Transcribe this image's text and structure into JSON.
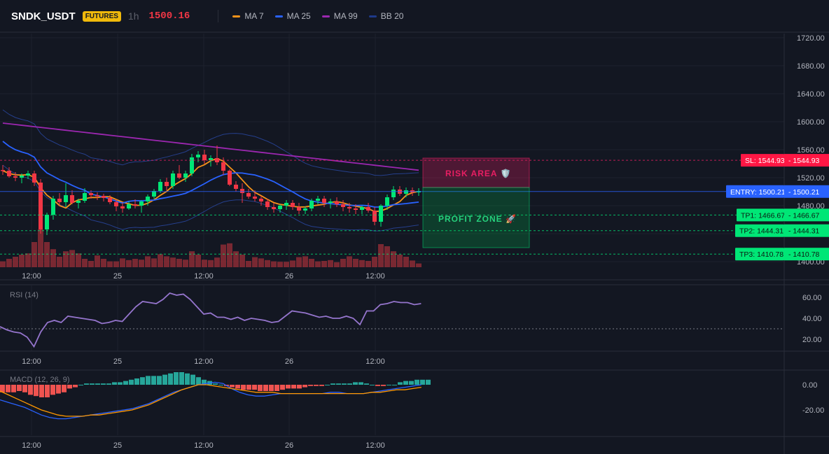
{
  "header": {
    "symbol": "SNDK_USDT",
    "badge": "FUTURES",
    "timeframe": "1h",
    "price": "1500.16",
    "legend": [
      {
        "label": "MA 7",
        "color": "#f7931a"
      },
      {
        "label": "MA 25",
        "color": "#2962ff"
      },
      {
        "label": "MA 99",
        "color": "#9c27b0"
      },
      {
        "label": "BB 20",
        "color": "#1e3a8a"
      }
    ]
  },
  "colors": {
    "background": "#131722",
    "up": "#26a69a",
    "up_bright": "#00e676",
    "down": "#f23645",
    "grid": "#1e222d",
    "sl": "#e91e63",
    "entry": "#2962ff",
    "tp": "#00e676"
  },
  "time_axis": [
    "12:00",
    "25",
    "12:00",
    "26",
    "12:00"
  ],
  "price_axis": {
    "labels": [
      "1720.00",
      "1680.00",
      "1640.00",
      "1600.00",
      "1560.00",
      "1520.00",
      "1480.00",
      "1440.00",
      "1400.00"
    ],
    "range": [
      1392,
      1726
    ]
  },
  "levels": {
    "sl": {
      "tag": "SL: 1544.93",
      "axis": "1544.93",
      "value": 1544.93
    },
    "entry": {
      "tag": "ENTRY: 1500.21",
      "axis": "1500.21",
      "value": 1500.21
    },
    "tp1": {
      "tag": "TP1: 1466.67",
      "axis": "1466.67",
      "value": 1466.67
    },
    "tp2": {
      "tag": "TP2: 1444.31",
      "axis": "1444.31",
      "value": 1444.31
    },
    "tp3": {
      "tag": "TP3: 1410.78",
      "axis": "1410.78",
      "value": 1410.78
    }
  },
  "zones": {
    "risk": "RISK AREA 🛡️",
    "profit": "PROFIT ZONE 🚀"
  },
  "rsi": {
    "title": "RSI (14)",
    "axis": [
      "60.00",
      "40.00",
      "20.00"
    ],
    "range": [
      10,
      70
    ],
    "dashed_level": 30,
    "values": [
      32,
      29,
      27,
      26,
      22,
      13,
      27,
      36,
      38,
      36,
      42,
      41,
      40,
      39,
      38,
      35,
      36,
      38,
      37,
      44,
      51,
      56,
      55,
      54,
      58,
      64,
      62,
      63,
      58,
      51,
      44,
      45,
      41,
      41,
      39,
      41,
      38,
      40,
      39,
      38,
      36,
      37,
      42,
      47,
      46,
      45,
      43,
      41,
      42,
      40,
      40,
      42,
      40,
      34,
      47,
      47,
      53,
      54,
      56,
      55,
      55,
      53,
      54
    ]
  },
  "macd": {
    "title": "MACD (12, 26, 9)",
    "axis": [
      "0.00",
      "-20.00"
    ],
    "range": [
      -40,
      10
    ],
    "hist": [
      -6,
      -6,
      -6,
      -5,
      -6,
      -8,
      -9,
      -10,
      -10,
      -8,
      -7,
      -6,
      -3,
      -2,
      0,
      1,
      1,
      1,
      1,
      1,
      2,
      2,
      3,
      4,
      5,
      6,
      7,
      7,
      7,
      8,
      9,
      10,
      10,
      9,
      8,
      6,
      4,
      3,
      1,
      0,
      -1,
      -2,
      -3,
      -4,
      -4,
      -4,
      -5,
      -5,
      -5,
      -5,
      -4,
      -3,
      -3,
      -3,
      -2,
      -1,
      -1,
      -1,
      0,
      1,
      1,
      1,
      1,
      2,
      2,
      1,
      0,
      -1,
      -1,
      0,
      0,
      2,
      3,
      3,
      4,
      4,
      4
    ],
    "macd": [
      -12,
      -14,
      -16,
      -18,
      -21,
      -24,
      -26,
      -27,
      -27,
      -26,
      -25,
      -24,
      -23,
      -22,
      -21,
      -20,
      -19,
      -17,
      -15,
      -12,
      -9,
      -6,
      -4,
      -2,
      0,
      1,
      2,
      1,
      -3,
      -6,
      -8,
      -9,
      -9,
      -8,
      -7,
      -7,
      -7,
      -7,
      -7,
      -7,
      -6,
      -6,
      -7,
      -7,
      -7,
      -6,
      -5,
      -4,
      -3,
      -2,
      -1,
      0
    ],
    "signal": [
      -5,
      -8,
      -11,
      -14,
      -17,
      -20,
      -22,
      -24,
      -25,
      -25,
      -25,
      -24,
      -24,
      -23,
      -22,
      -21,
      -20,
      -18,
      -16,
      -13,
      -10,
      -7,
      -4,
      -2,
      0,
      0,
      -1,
      -2,
      -3,
      -4,
      -5,
      -6,
      -6,
      -6,
      -7,
      -7,
      -7,
      -7,
      -7,
      -7,
      -7,
      -7,
      -7,
      -7,
      -7,
      -6,
      -6,
      -5,
      -4,
      -4,
      -3,
      -2
    ]
  },
  "chart_data": {
    "type": "candlestick",
    "x_ticks": [
      "12:00",
      "25",
      "12:00",
      "26",
      "12:00"
    ],
    "y_range": [
      1392,
      1726
    ],
    "candles": [
      [
        1531,
        1538,
        1524,
        1530
      ],
      [
        1530,
        1535,
        1520,
        1522
      ],
      [
        1522,
        1528,
        1515,
        1520
      ],
      [
        1520,
        1526,
        1512,
        1523
      ],
      [
        1523,
        1530,
        1518,
        1526
      ],
      [
        1526,
        1530,
        1508,
        1513
      ],
      [
        1513,
        1518,
        1440,
        1446
      ],
      [
        1446,
        1470,
        1438,
        1467
      ],
      [
        1467,
        1494,
        1460,
        1490
      ],
      [
        1490,
        1498,
        1480,
        1485
      ],
      [
        1485,
        1512,
        1478,
        1495
      ],
      [
        1495,
        1502,
        1482,
        1484
      ],
      [
        1484,
        1490,
        1476,
        1487
      ],
      [
        1487,
        1505,
        1484,
        1498
      ],
      [
        1498,
        1502,
        1490,
        1495
      ],
      [
        1495,
        1499,
        1488,
        1494
      ],
      [
        1494,
        1497,
        1486,
        1491
      ],
      [
        1491,
        1495,
        1482,
        1485
      ],
      [
        1485,
        1489,
        1472,
        1479
      ],
      [
        1479,
        1484,
        1470,
        1476
      ],
      [
        1476,
        1486,
        1474,
        1482
      ],
      [
        1482,
        1489,
        1476,
        1480
      ],
      [
        1480,
        1488,
        1470,
        1486
      ],
      [
        1486,
        1496,
        1480,
        1493
      ],
      [
        1493,
        1504,
        1490,
        1501
      ],
      [
        1501,
        1518,
        1498,
        1514
      ],
      [
        1514,
        1520,
        1502,
        1508
      ],
      [
        1508,
        1530,
        1504,
        1526
      ],
      [
        1526,
        1538,
        1518,
        1520
      ],
      [
        1520,
        1530,
        1514,
        1526
      ],
      [
        1526,
        1554,
        1522,
        1549
      ],
      [
        1549,
        1558,
        1542,
        1553
      ],
      [
        1553,
        1560,
        1540,
        1545
      ],
      [
        1545,
        1552,
        1536,
        1548
      ],
      [
        1548,
        1566,
        1538,
        1542
      ],
      [
        1542,
        1549,
        1524,
        1530
      ],
      [
        1530,
        1532,
        1508,
        1510
      ],
      [
        1510,
        1515,
        1500,
        1504
      ],
      [
        1504,
        1512,
        1484,
        1498
      ],
      [
        1498,
        1504,
        1490,
        1493
      ],
      [
        1493,
        1502,
        1486,
        1490
      ],
      [
        1490,
        1494,
        1480,
        1486
      ],
      [
        1486,
        1490,
        1474,
        1478
      ],
      [
        1478,
        1484,
        1470,
        1475
      ],
      [
        1475,
        1482,
        1470,
        1480
      ],
      [
        1480,
        1488,
        1474,
        1484
      ],
      [
        1484,
        1488,
        1474,
        1478
      ],
      [
        1478,
        1484,
        1468,
        1473
      ],
      [
        1473,
        1479,
        1468,
        1476
      ],
      [
        1476,
        1490,
        1472,
        1487
      ],
      [
        1487,
        1494,
        1482,
        1490
      ],
      [
        1490,
        1494,
        1478,
        1484
      ],
      [
        1484,
        1490,
        1476,
        1486
      ],
      [
        1486,
        1492,
        1478,
        1482
      ],
      [
        1482,
        1488,
        1472,
        1478
      ],
      [
        1478,
        1484,
        1470,
        1476
      ],
      [
        1476,
        1482,
        1468,
        1474
      ],
      [
        1474,
        1480,
        1468,
        1478
      ],
      [
        1478,
        1484,
        1470,
        1473
      ],
      [
        1473,
        1478,
        1452,
        1457
      ],
      [
        1457,
        1482,
        1450,
        1480
      ],
      [
        1480,
        1496,
        1474,
        1492
      ],
      [
        1492,
        1508,
        1488,
        1503
      ],
      [
        1503,
        1508,
        1494,
        1497
      ],
      [
        1497,
        1506,
        1492,
        1502
      ],
      [
        1502,
        1506,
        1494,
        1499
      ],
      [
        1499,
        1505,
        1494,
        1501
      ]
    ],
    "volume": [
      14,
      20,
      25,
      30,
      33,
      60,
      90,
      60,
      43,
      25,
      38,
      41,
      33,
      20,
      15,
      28,
      20,
      14,
      14,
      21,
      17,
      20,
      18,
      26,
      21,
      31,
      26,
      23,
      20,
      18,
      38,
      30,
      18,
      17,
      23,
      54,
      57,
      38,
      30,
      15,
      24,
      21,
      17,
      14,
      13,
      13,
      16,
      24,
      26,
      20,
      14,
      15,
      17,
      12,
      20,
      26,
      20,
      17,
      15,
      25,
      55,
      50,
      38,
      30,
      25,
      16,
      9
    ]
  }
}
